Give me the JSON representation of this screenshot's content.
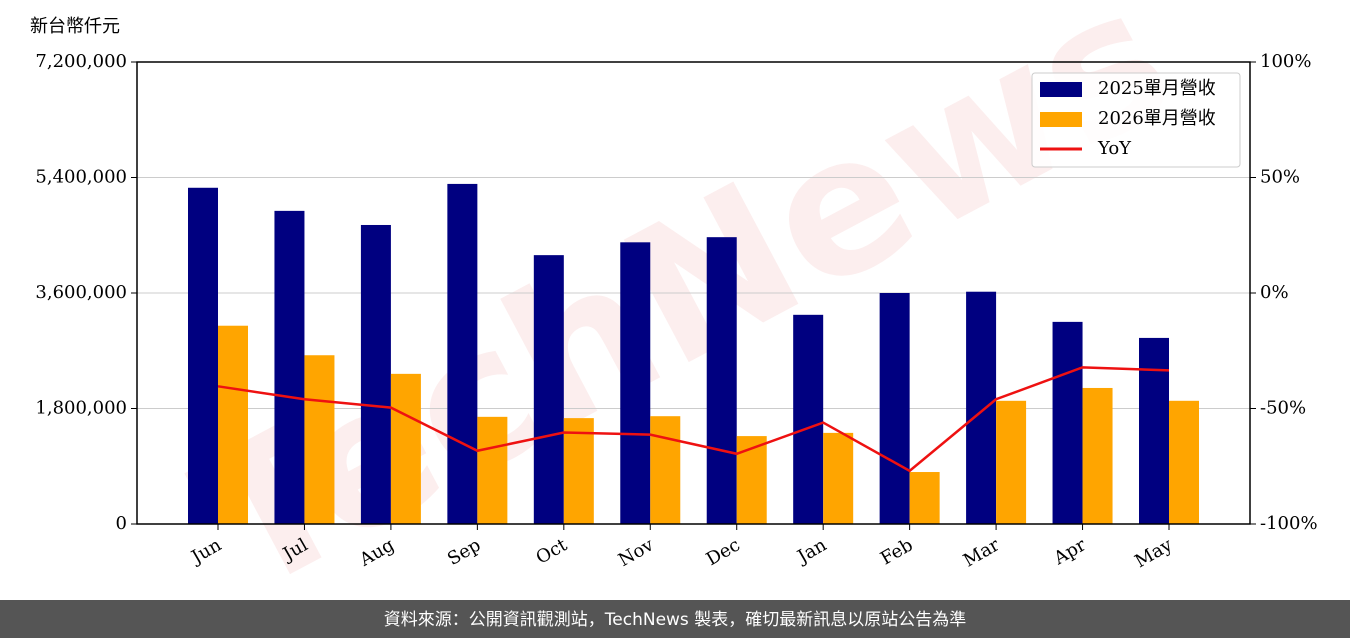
{
  "chart_data": {
    "type": "bar_line",
    "y_axis_label": "新台幣仟元",
    "categories": [
      "Jun",
      "Jul",
      "Aug",
      "Sep",
      "Oct",
      "Nov",
      "Dec",
      "Jan",
      "Feb",
      "Mar",
      "Apr",
      "May"
    ],
    "series": [
      {
        "name": "2025單月營收",
        "color": "#000080",
        "type": "bar",
        "values": [
          5240000,
          4880000,
          4660000,
          5300000,
          4190000,
          4390000,
          4470000,
          3260000,
          3600000,
          3620000,
          3150000,
          2900000
        ]
      },
      {
        "name": "2026單月營收",
        "color": "#ffa500",
        "type": "bar",
        "values": [
          3090000,
          2630000,
          2340000,
          1670000,
          1650000,
          1680000,
          1370000,
          1420000,
          810000,
          1920000,
          2120000,
          1920000
        ]
      },
      {
        "name": "YoY",
        "color": "#ee1111",
        "type": "line",
        "axis": "y2",
        "values": [
          -40.4,
          -46,
          -49.6,
          -68.3,
          -60.4,
          -61.3,
          -69.6,
          -56.1,
          -77,
          -46,
          -32.2,
          -33.5
        ]
      }
    ],
    "ylim": [
      0,
      7200000
    ],
    "yticks": [
      0,
      {
        "value": 1800000,
        "label": "1,800,000"
      },
      {
        "value": 3600000,
        "label": "3,600,000"
      },
      {
        "value": 5400000,
        "label": "5,400,000"
      },
      {
        "value": 7200000,
        "label": "7,200,000"
      }
    ],
    "y2lim": [
      -100,
      100
    ],
    "y2ticks": [
      {
        "value": -100,
        "label": "-100%"
      },
      {
        "value": -50,
        "label": "-50%"
      },
      {
        "value": 0,
        "label": "0%"
      },
      {
        "value": 50,
        "label": "50%"
      },
      {
        "value": 100,
        "label": "100%"
      }
    ],
    "grid": true,
    "legend": "upper right",
    "watermark": "TechNews",
    "source": "資料來源：公開資訊觀測站，TechNews 製表，確切最新訊息以原站公告為準"
  }
}
